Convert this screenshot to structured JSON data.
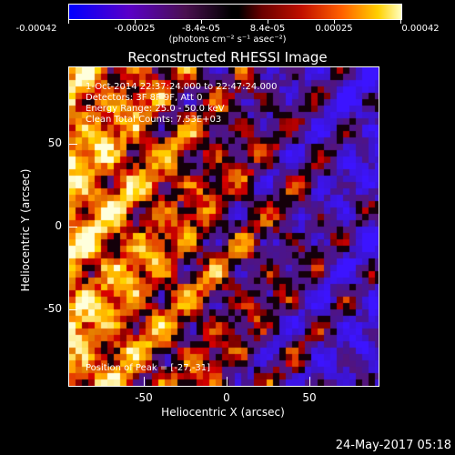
{
  "colorbar": {
    "tick_labels": [
      "-0.00042",
      "-0.00025",
      "-8.4e-05",
      "8.4e-05",
      "0.00025",
      "0.00042"
    ],
    "units_label": "(photons cm⁻² s⁻¹ asec⁻²)"
  },
  "title": "Reconstructed RHESSI Image",
  "info": {
    "time_range": "1-Oct-2014 22:37:24.000 to 22:47:24.000",
    "detectors": "Detectors: 3F 8F 9F, Att 0",
    "energy_range": "Energy Range: 25.0 - 50.0 keV",
    "clean": "Clean    Total Counts: 7.53E+03",
    "peak": "Position of Peak = [-27,-31]"
  },
  "axes": {
    "xlabel": "Heliocentric X (arcsec)",
    "ylabel": "Heliocentric Y (arcsec)",
    "xticks": [
      "-50",
      "0",
      "50"
    ],
    "yticks": [
      "50",
      "0",
      "-50"
    ]
  },
  "timestamp": "24-May-2017 05:18",
  "chart_data": {
    "type": "heatmap",
    "title": "Reconstructed RHESSI Image",
    "xlabel": "Heliocentric X (arcsec)",
    "ylabel": "Heliocentric Y (arcsec)",
    "xlim": [
      -95,
      92
    ],
    "ylim": [
      -95,
      97
    ],
    "colorbar_range": [
      -0.00042,
      0.00042
    ],
    "peak_position": [
      -27,
      -31
    ]
  }
}
